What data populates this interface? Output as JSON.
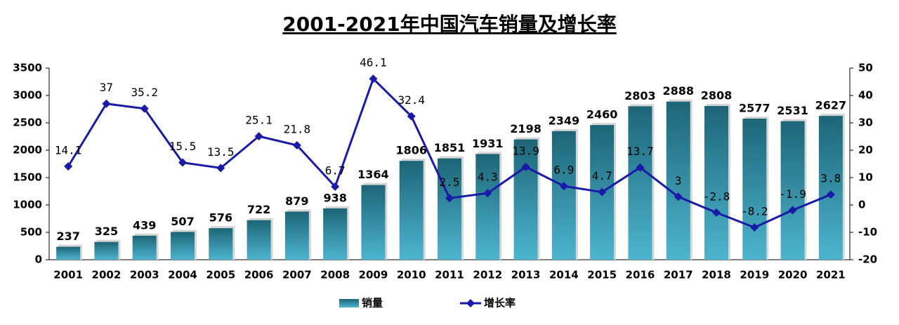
{
  "chart_data": {
    "type": "bar_line",
    "title": "2001-2021年中国汽车销量及增长率",
    "categories": [
      "2001",
      "2002",
      "2003",
      "2004",
      "2005",
      "2006",
      "2007",
      "2008",
      "2009",
      "2010",
      "2011",
      "2012",
      "2013",
      "2014",
      "2015",
      "2016",
      "2017",
      "2018",
      "2019",
      "2020",
      "2021"
    ],
    "series": [
      {
        "name": "销量",
        "type": "bar",
        "color": "#2f8aa0",
        "values": [
          237,
          325,
          439,
          507,
          576,
          722,
          879,
          938,
          1364,
          1806,
          1851,
          1931,
          2198,
          2349,
          2460,
          2803,
          2888,
          2808,
          2577,
          2531,
          2627
        ]
      },
      {
        "name": "增长率",
        "type": "line",
        "axis": "y2",
        "color": "#1a1aa8",
        "values": [
          14.1,
          37,
          35.2,
          15.5,
          13.5,
          25.1,
          21.8,
          6.7,
          46.1,
          32.4,
          2.5,
          4.3,
          13.9,
          6.9,
          4.7,
          13.7,
          3,
          -2.8,
          -8.2,
          -1.9,
          3.8
        ]
      }
    ],
    "negative_label_color": "#ff0000",
    "ylim": [
      0,
      3500
    ],
    "yticks": [
      0,
      500,
      1000,
      1500,
      2000,
      2500,
      3000,
      3500
    ],
    "y2lim": [
      -20,
      50
    ],
    "y2ticks": [
      -20,
      -10,
      0,
      10,
      20,
      30,
      40,
      50
    ],
    "legend": "bottom"
  }
}
